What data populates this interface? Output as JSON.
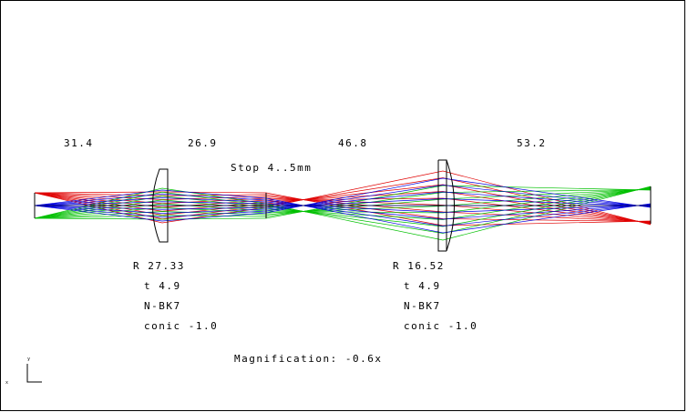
{
  "distances": [
    "31.4",
    "26.9",
    "46.8",
    "53.2"
  ],
  "stop_label": "Stop 4..5mm",
  "lenses": [
    {
      "radius": "R 27.33",
      "thickness": "t 4.9",
      "glass": "N-BK7",
      "conic": "conic -1.0"
    },
    {
      "radius": "R 16.52",
      "thickness": "t 4.9",
      "glass": "N-BK7",
      "conic": "conic -1.0"
    }
  ],
  "magnification": "Magnification: -0.6x",
  "axes": {
    "x": "x",
    "y": "y"
  }
}
